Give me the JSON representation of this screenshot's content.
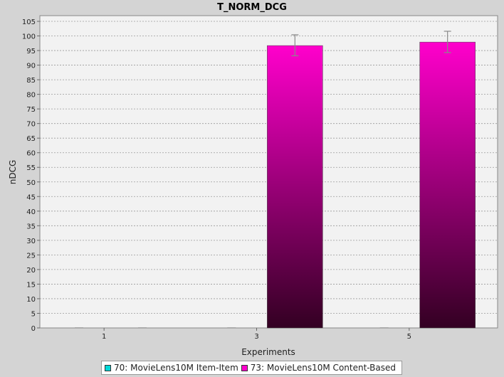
{
  "chart_data": {
    "type": "bar",
    "title": "T_NORM_DCG",
    "xlabel": "Experiments",
    "ylabel": "nDCG",
    "categories": [
      "1",
      "3",
      "5"
    ],
    "ylim": [
      0,
      105
    ],
    "yticks": [
      0,
      5,
      10,
      15,
      20,
      25,
      30,
      35,
      40,
      45,
      50,
      55,
      60,
      65,
      70,
      75,
      80,
      85,
      90,
      95,
      100,
      105
    ],
    "grid": true,
    "legend_position": "bottom",
    "series": [
      {
        "name": "70: MovieLens10M Item-Item",
        "color": "#00d8d8",
        "values": [
          0,
          0,
          0
        ],
        "error_low": [
          null,
          null,
          null
        ],
        "error_high": [
          null,
          null,
          null
        ]
      },
      {
        "name": "73: MovieLens10M Content-Based",
        "color": "#ff00cc",
        "color_dark": "#330022",
        "values": [
          0,
          96.7,
          97.9
        ],
        "error_low": [
          null,
          93.2,
          94.3
        ],
        "error_high": [
          null,
          100.4,
          101.6
        ]
      }
    ]
  }
}
